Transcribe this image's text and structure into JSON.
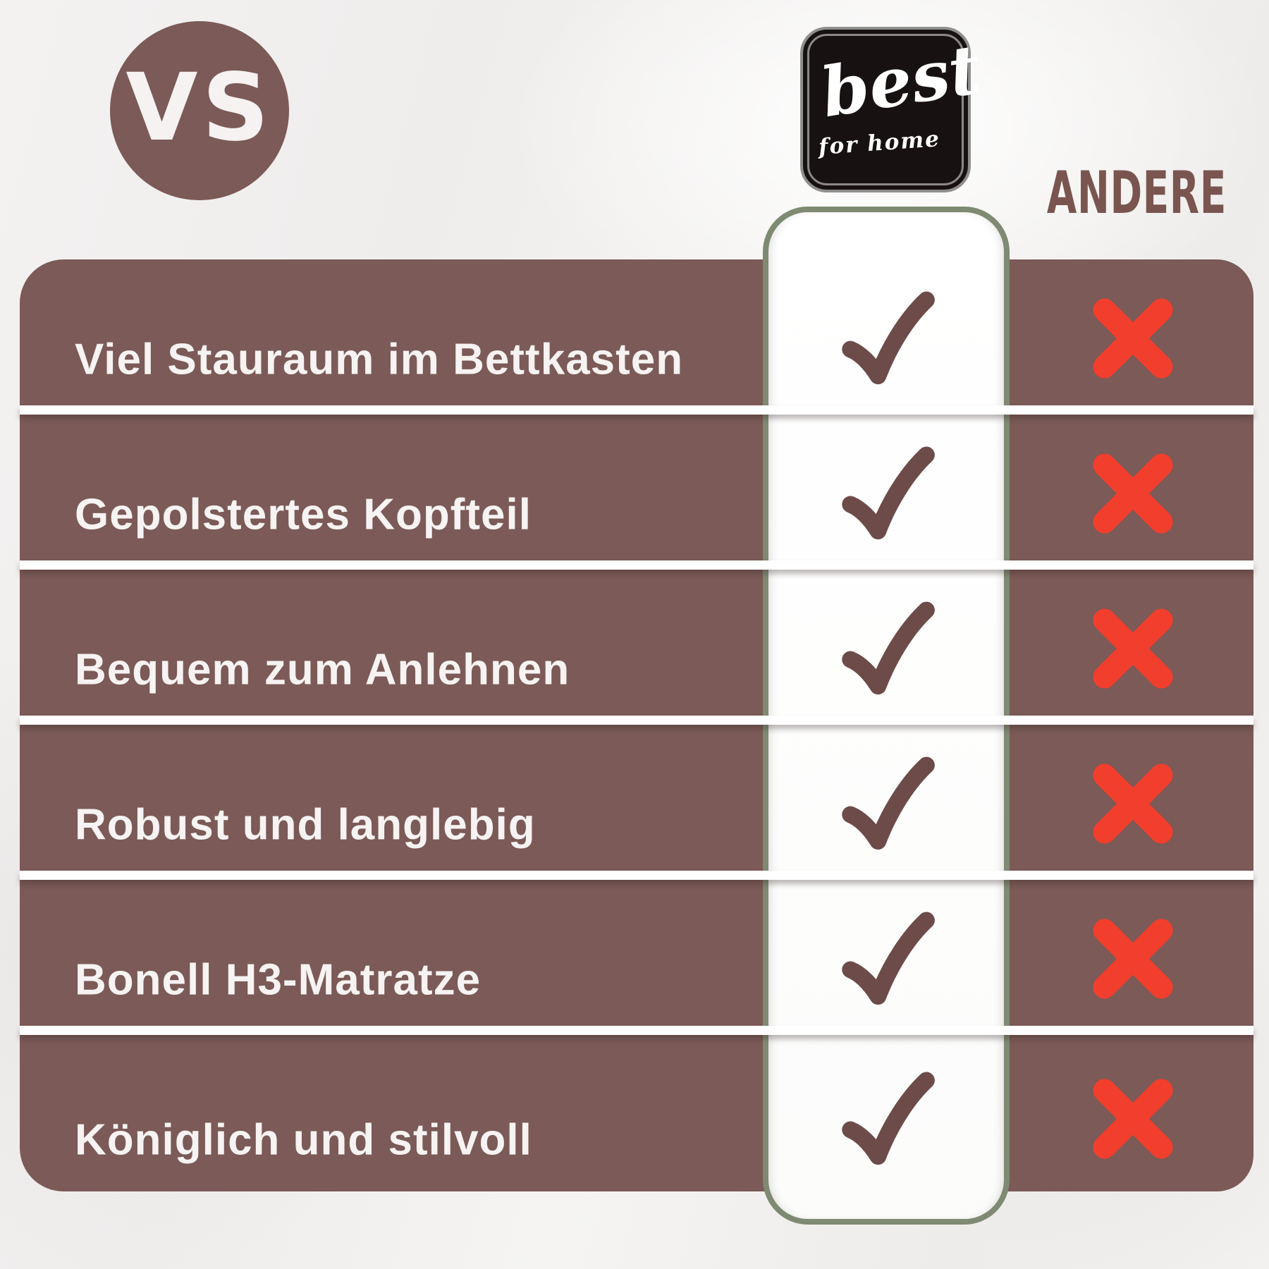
{
  "header": {
    "vs_label": "VS",
    "brand": {
      "name": "best",
      "tagline": "for home",
      "logo_icon": "best-for-home-logo"
    },
    "competitor_label": "ANDERE"
  },
  "table": {
    "rows": [
      {
        "label": "Viel Stauraum im Bettkasten",
        "brand": "check",
        "competitor": "cross"
      },
      {
        "label": "Gepolstertes Kopfteil",
        "brand": "check",
        "competitor": "cross"
      },
      {
        "label": "Bequem zum Anlehnen",
        "brand": "check",
        "competitor": "cross"
      },
      {
        "label": "Robust und langlebig",
        "brand": "check",
        "competitor": "cross"
      },
      {
        "label": "Bonell H3-Matratze",
        "brand": "check",
        "competitor": "cross"
      },
      {
        "label": "Königlich und stilvoll",
        "brand": "check",
        "competitor": "cross"
      }
    ]
  },
  "icons": {
    "brand_cell": "check-icon",
    "competitor_cell": "cross-icon"
  },
  "colors": {
    "row-brown": "#7b5a57",
    "check-brown": "#6d4b48",
    "cross-red": "#f23e2d",
    "column-border": "#7e8a71",
    "competitor-text": "#7a5550",
    "logo-black": "#171211"
  }
}
